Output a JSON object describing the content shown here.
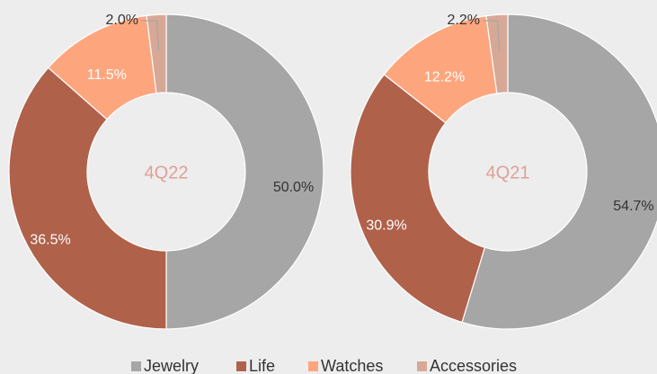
{
  "chart_data": [
    {
      "type": "pie",
      "center_label": "4Q22",
      "categories": [
        "Jewelry",
        "Life",
        "Watches",
        "Accessories"
      ],
      "values": [
        50.0,
        36.5,
        11.5,
        2.0
      ],
      "value_labels": [
        "50.0%",
        "36.5%",
        "11.5%",
        "2.0%"
      ],
      "colors": [
        "#a6a6a6",
        "#b0614a",
        "#fda67e",
        "#d7a896"
      ]
    },
    {
      "type": "pie",
      "center_label": "4Q21",
      "categories": [
        "Jewelry",
        "Life",
        "Watches",
        "Accessories"
      ],
      "values": [
        54.7,
        30.9,
        12.2,
        2.2
      ],
      "value_labels": [
        "54.7%",
        "30.9%",
        "12.2%",
        "2.2%"
      ],
      "colors": [
        "#a6a6a6",
        "#b0614a",
        "#fda67e",
        "#d7a896"
      ]
    }
  ]
}
